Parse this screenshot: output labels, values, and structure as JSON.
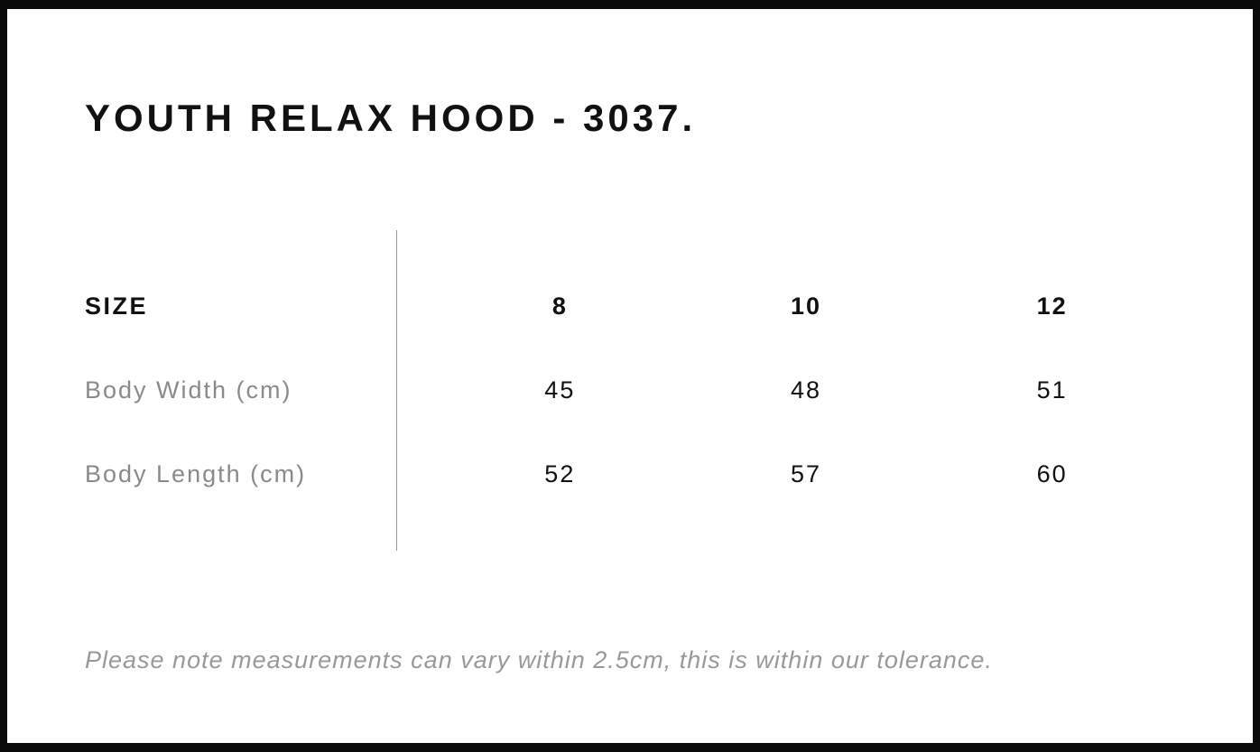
{
  "page": {
    "title": "YOUTH RELAX HOOD - 3037."
  },
  "size_chart": {
    "header": {
      "label": "SIZE",
      "sizes": [
        "8",
        "10",
        "12"
      ]
    },
    "rows": [
      {
        "label": "Body Width (cm)",
        "values": [
          "45",
          "48",
          "51"
        ]
      },
      {
        "label": "Body Length (cm)",
        "values": [
          "52",
          "57",
          "60"
        ]
      }
    ]
  },
  "note": {
    "text": "Please note measurements can vary within 2.5cm, this is within our tolerance."
  },
  "colors": {
    "frame_border": "#0a0a0a",
    "heading_text": "#111111",
    "label_gray": "#8a8a8a",
    "note_gray": "#999999",
    "divider_gray": "#9b9b9b",
    "background": "#ffffff"
  }
}
